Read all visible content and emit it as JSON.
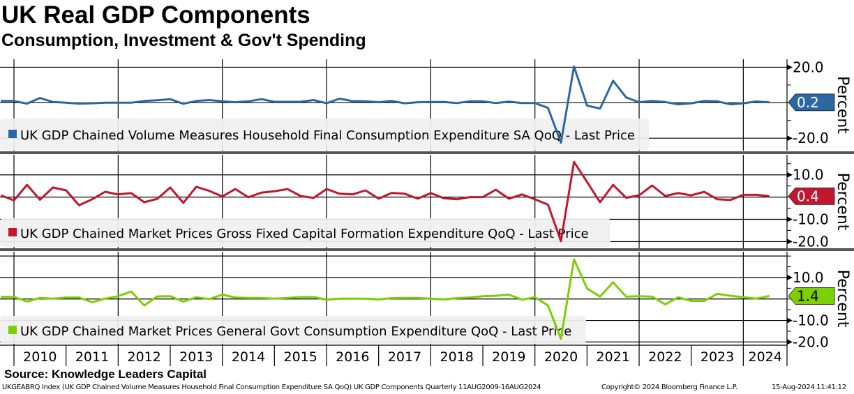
{
  "header": {
    "title": "UK Real GDP Components",
    "subtitle": "Consumption, Investment & Gov't Spending"
  },
  "footer": {
    "source": "Source: Knowledge Leaders Capital",
    "description": "UKGEABRQ Index (UK GDP Chained Volume Measures Household Final Consumption Expenditure SA QoQ) UK GDP Components  Quarterly 11AUG2009-16AUG2024",
    "copyright": "Copyright© 2024 Bloomberg Finance L.P.",
    "timestamp": "15-Aug-2024 11:41:12"
  },
  "x_axis": {
    "year_labels": [
      "2010",
      "2011",
      "2012",
      "2013",
      "2014",
      "2015",
      "2016",
      "2017",
      "2018",
      "2019",
      "2020",
      "2021",
      "2022",
      "2023",
      "2024"
    ]
  },
  "chart_data": [
    {
      "type": "line",
      "title": "UK GDP Chained Volume Measures Household Final Consumption Expenditure SA QoQ",
      "legend": "UK GDP Chained Volume Measures Household Final Consumption Expenditure SA QoQ - Last Price",
      "ylabel": "Percent",
      "color": "#2b67a3",
      "ylim": [
        -27,
        24.5
      ],
      "gridlines": [
        20,
        0,
        -20
      ],
      "ticks": [
        20,
        10,
        0,
        -10,
        -20
      ],
      "tick_labels": [
        {
          "value": 20,
          "label": "20.0"
        },
        {
          "value": -20,
          "label": "-20.0"
        }
      ],
      "last_value": 0.2,
      "last_label": "0.2",
      "x_start": "2009Q3",
      "values": [
        1.0,
        1.0,
        -0.5,
        2.7,
        0.4,
        0.0,
        -0.5,
        -0.3,
        0.0,
        0.0,
        0.0,
        1.0,
        1.4,
        2.0,
        -0.6,
        1.0,
        1.5,
        0.8,
        0.3,
        0.8,
        2.0,
        0.5,
        0.5,
        0.5,
        1.5,
        -0.3,
        2.3,
        0.9,
        0.8,
        0.3,
        1.0,
        -0.3,
        0.3,
        0.4,
        0.4,
        -0.2,
        0.8,
        0.8,
        -0.2,
        0.6,
        -0.2,
        -0.2,
        -2.9,
        -22.5,
        20.4,
        -1.6,
        -3.3,
        12.4,
        3.0,
        0.3,
        1.0,
        0.4,
        -0.9,
        -0.3,
        1.0,
        0.8,
        -0.9,
        -0.3,
        0.7,
        0.2
      ]
    },
    {
      "type": "line",
      "title": "UK GDP Chained Market Prices Gross Fixed Capital Formation Expenditure QoQ",
      "legend": "UK GDP Chained Market Prices Gross Fixed Capital Formation Expenditure QoQ - Last Price",
      "ylabel": "Percent",
      "color": "#c0172f",
      "ylim": [
        -23,
        19
      ],
      "gridlines": [
        10,
        0,
        -10,
        -20
      ],
      "ticks": [
        15,
        10,
        5,
        0,
        -5,
        -10,
        -15,
        -20
      ],
      "tick_labels": [
        {
          "value": 10,
          "label": "10.0"
        },
        {
          "value": -10,
          "label": "-10.0"
        },
        {
          "value": -20,
          "label": "-20.0"
        }
      ],
      "last_value": 0.4,
      "last_label": "0.4",
      "x_start": "2009Q3",
      "values": [
        0.8,
        -1.5,
        5.5,
        -1.2,
        4.3,
        3.0,
        -3.7,
        -1.0,
        2.4,
        1.2,
        1.8,
        -2.3,
        -0.8,
        4.3,
        -2.6,
        4.6,
        2.8,
        0.3,
        3.6,
        -0.1,
        2.0,
        2.6,
        3.6,
        0.5,
        -0.4,
        3.6,
        1.5,
        1.2,
        3.0,
        -0.7,
        1.9,
        1.5,
        -0.7,
        1.8,
        -0.5,
        -1.0,
        0.0,
        0.0,
        3.3,
        -0.7,
        1.2,
        -1.0,
        -3.4,
        -19.8,
        15.8,
        6.8,
        -2.3,
        5.5,
        -0.3,
        0.8,
        5.2,
        0.5,
        1.8,
        0.8,
        2.4,
        -1.0,
        -1.3,
        1.0,
        1.0,
        0.4
      ]
    },
    {
      "type": "line",
      "title": "UK GDP Chained Market Prices General Govt Consumption Expenditure QoQ",
      "legend": "UK GDP Chained Market Prices General Govt Consumption Expenditure QoQ - Last Price",
      "ylabel": "Percent",
      "color": "#7ccf00",
      "ylim": [
        -21.5,
        22
      ],
      "gridlines": [
        20,
        10,
        0,
        -10,
        -20
      ],
      "ticks": [
        20,
        15,
        10,
        5,
        0,
        -5,
        -10,
        -15,
        -20
      ],
      "tick_labels": [
        {
          "value": 10,
          "label": "10.0"
        },
        {
          "value": -10,
          "label": "-10.0"
        },
        {
          "value": -20,
          "label": "-20.0"
        }
      ],
      "last_value": 1.4,
      "last_label": "1.4",
      "x_start": "2009Q3",
      "values": [
        1.0,
        1.0,
        -1.2,
        0.5,
        0.2,
        0.7,
        0.7,
        -1.5,
        0.2,
        1.3,
        3.5,
        -3.0,
        1.2,
        1.3,
        -1.2,
        0.8,
        0.0,
        2.0,
        0.7,
        0.5,
        0.5,
        0.2,
        0.5,
        0.9,
        0.9,
        -0.3,
        0.2,
        0.2,
        0.2,
        -0.2,
        0.4,
        0.5,
        0.5,
        0.2,
        -0.2,
        0.4,
        0.7,
        1.3,
        1.5,
        2.0,
        -0.3,
        0.8,
        -3.0,
        -18.5,
        18.5,
        4.9,
        1.1,
        7.8,
        1.1,
        1.3,
        1.1,
        -2.5,
        0.8,
        -0.9,
        -0.9,
        2.4,
        1.5,
        0.8,
        0.2,
        1.4
      ]
    }
  ]
}
